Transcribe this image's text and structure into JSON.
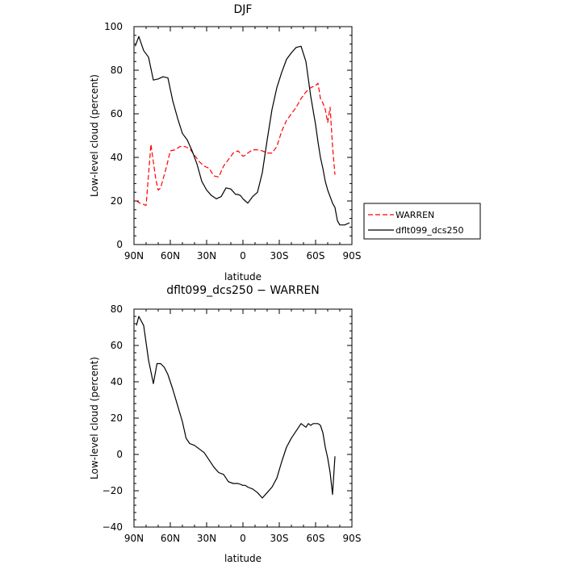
{
  "chart_data": [
    {
      "type": "line",
      "title": "DJF",
      "xlabel": "latitude",
      "ylabel": "Low-level cloud (percent)",
      "xlim": [
        -90,
        90
      ],
      "ylim": [
        0,
        100
      ],
      "xticks": [
        -90,
        -60,
        -30,
        0,
        30,
        60,
        90
      ],
      "xtick_labels": [
        "90N",
        "60N",
        "30N",
        "0",
        "30S",
        "60S",
        "90S"
      ],
      "yticks": [
        0,
        20,
        40,
        60,
        80,
        100
      ],
      "ytick_labels": [
        "0",
        "20",
        "40",
        "60",
        "80",
        "100"
      ],
      "grid": false,
      "legend_position": "outside-right",
      "series": [
        {
          "name": "WARREN",
          "color": "#ff0000",
          "dash": "dashed",
          "x": [
            -88,
            -85,
            -80,
            -76,
            -72,
            -70,
            -68,
            -66,
            -63,
            -60,
            -56,
            -52,
            -48,
            -44,
            -40,
            -36,
            -32,
            -28,
            -24,
            -20,
            -16,
            -12,
            -8,
            -4,
            0,
            2,
            4,
            8,
            12,
            16,
            20,
            24,
            28,
            32,
            36,
            40,
            44,
            48,
            52,
            56,
            60,
            62,
            64,
            66,
            68,
            70,
            72,
            74,
            76
          ],
          "y": [
            20,
            19,
            18,
            46,
            30,
            25,
            26,
            30,
            36,
            43,
            43.5,
            45,
            45,
            44,
            41,
            38,
            36,
            35,
            31.5,
            31,
            36,
            39,
            42,
            43,
            40.5,
            41,
            42,
            43.5,
            43.5,
            43,
            42,
            42,
            45,
            52,
            57,
            60,
            63,
            67,
            70,
            72,
            73,
            74,
            67,
            65,
            62,
            56,
            63,
            45,
            32
          ]
        },
        {
          "name": "dflt099_dcs250",
          "color": "#000000",
          "dash": "solid",
          "x": [
            -89,
            -86,
            -82,
            -78,
            -74,
            -70,
            -66,
            -62,
            -58,
            -54,
            -50,
            -46,
            -42,
            -38,
            -34,
            -30,
            -26,
            -22,
            -18,
            -14,
            -10,
            -6,
            -4,
            -2,
            0,
            2,
            4,
            8,
            12,
            16,
            20,
            24,
            28,
            32,
            36,
            40,
            44,
            48,
            52,
            56,
            60,
            62,
            64,
            66,
            68,
            70,
            72,
            74,
            76,
            78,
            80,
            84,
            88
          ],
          "y": [
            91,
            95.5,
            89,
            86,
            75.5,
            76,
            77,
            76.5,
            66,
            58,
            51,
            48,
            43,
            37,
            29,
            25,
            22.5,
            21,
            22,
            26,
            25.5,
            23,
            23,
            22.5,
            21,
            20,
            19,
            22,
            24,
            33,
            48,
            62,
            72,
            79,
            85,
            88,
            90.5,
            91,
            84,
            68,
            55,
            47,
            40,
            35,
            29,
            25,
            22,
            19,
            17,
            11,
            9,
            9,
            10
          ]
        }
      ]
    },
    {
      "type": "line",
      "title": "dflt099_dcs250 − WARREN",
      "xlabel": "latitude",
      "ylabel": "Low-level cloud (percent)",
      "xlim": [
        -90,
        90
      ],
      "ylim": [
        -40,
        80
      ],
      "xticks": [
        -90,
        -60,
        -30,
        0,
        30,
        60,
        90
      ],
      "xtick_labels": [
        "90N",
        "60N",
        "30N",
        "0",
        "30S",
        "60S",
        "90S"
      ],
      "yticks": [
        -40,
        -20,
        0,
        20,
        40,
        60,
        80
      ],
      "ytick_labels": [
        "−40",
        "−20",
        "0",
        "20",
        "40",
        "60",
        "80"
      ],
      "grid": false,
      "series": [
        {
          "name": "",
          "color": "#000000",
          "dash": "solid",
          "x": [
            -88,
            -86,
            -82,
            -78,
            -74,
            -71,
            -68,
            -65,
            -62,
            -58,
            -54,
            -50,
            -47,
            -44,
            -40,
            -36,
            -32,
            -28,
            -24,
            -20,
            -16,
            -12,
            -8,
            -4,
            0,
            2,
            4,
            8,
            12,
            16,
            20,
            24,
            28,
            32,
            36,
            40,
            44,
            48,
            52,
            54,
            56,
            58,
            60,
            62,
            64,
            66,
            68,
            70,
            72,
            74,
            76
          ],
          "y": [
            71,
            76,
            71,
            52,
            39,
            50,
            50,
            48,
            44,
            36,
            27,
            18,
            9,
            6,
            5,
            3,
            1,
            -3,
            -7,
            -10,
            -11,
            -15,
            -16,
            -16,
            -17,
            -17,
            -18,
            -19,
            -21,
            -24,
            -21,
            -18,
            -13,
            -4,
            4,
            9,
            13,
            17,
            15,
            17,
            16,
            17,
            17,
            17,
            16,
            12,
            4,
            -2,
            -10,
            -22,
            -1
          ]
        }
      ]
    }
  ]
}
